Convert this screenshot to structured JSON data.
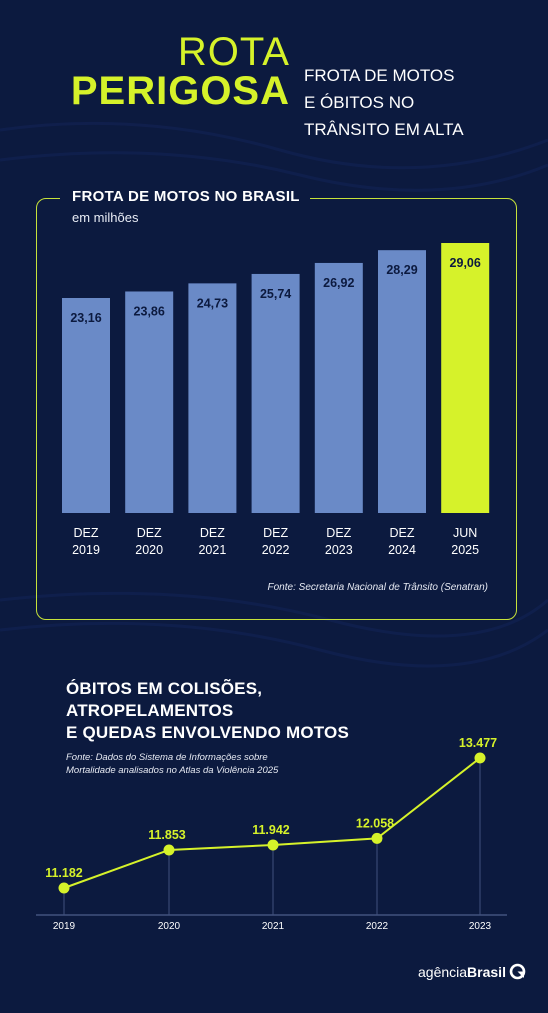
{
  "header": {
    "title_line1": "ROTA",
    "title_line2": "PERIGOSA",
    "subtitle_lines": [
      "FROTA DE MOTOS",
      "E ÓBITOS NO",
      "TRÂNSITO EM ALTA"
    ]
  },
  "colors": {
    "background": "#0c1a3f",
    "accent": "#d6f22a",
    "bar": "#6a8ac7",
    "bar_label": "#0c1a3f"
  },
  "chart_data": [
    {
      "type": "bar",
      "title": "FROTA DE MOTOS NO BRASIL",
      "subtitle": "em milhões",
      "categories": [
        [
          "DEZ",
          "2019"
        ],
        [
          "DEZ",
          "2020"
        ],
        [
          "DEZ",
          "2021"
        ],
        [
          "DEZ",
          "2022"
        ],
        [
          "DEZ",
          "2023"
        ],
        [
          "DEZ",
          "2024"
        ],
        [
          "JUN",
          "2025"
        ]
      ],
      "values": [
        23.16,
        23.86,
        24.73,
        25.74,
        26.92,
        28.29,
        29.06
      ],
      "value_labels": [
        "23,16",
        "23,86",
        "24,73",
        "25,74",
        "26,92",
        "28,29",
        "29,06"
      ],
      "highlight_index": 6,
      "source": "Fonte:  Secretaria Nacional de Trânsito (Senatran)"
    },
    {
      "type": "line",
      "title_lines": [
        "ÓBITOS EM COLISÕES,",
        "ATROPELAMENTOS",
        "E QUEDAS ENVOLVENDO MOTOS"
      ],
      "source_lines": [
        "Fonte:  Dados do Sistema de Informações sobre",
        "Mortalidade analisados no Atlas da Violência 2025"
      ],
      "x": [
        "2019",
        "2020",
        "2021",
        "2022",
        "2023"
      ],
      "values": [
        11182,
        11853,
        11942,
        12058,
        13477
      ],
      "value_labels": [
        "11.182",
        "11.853",
        "11.942",
        "12.058",
        "13.477"
      ]
    }
  ],
  "footer": {
    "logo_prefix": "agência",
    "logo_brand": "Brasil"
  }
}
